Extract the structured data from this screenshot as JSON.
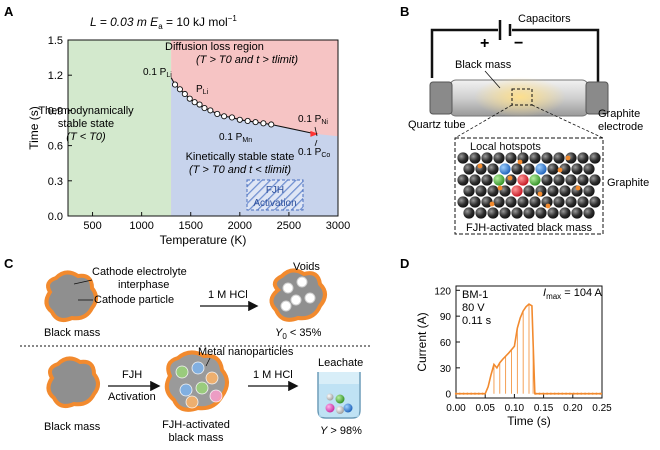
{
  "panels": {
    "a": {
      "label": "A",
      "header_l": "L = 0.03 m",
      "header_ea": "E",
      "header_ea_sub": "a",
      "header_ea_val": " = 10 kJ mol",
      "header_ea_sup": "−1",
      "region_diffusion_title": "Diffusion loss region",
      "region_diffusion_cond": "(T > T0  and  t > tlimit)",
      "region_thermo_title1": "Thermodynamically",
      "region_thermo_title2": "stable state",
      "region_thermo_cond": "(T < T0)",
      "region_kinetic_title": "Kinetically stable state",
      "region_kinetic_cond": "(T > T0  and  t < tlimit)",
      "fjh_box_line1": "FJH",
      "fjh_box_line2": "Activation",
      "annot_pli_1": "0.1 P",
      "annot_pli_1_sub": "Li",
      "annot_pli_2": "P",
      "annot_pli_2_sub": "Li",
      "annot_pmn": "0.1 P",
      "annot_pmn_sub": "Mn",
      "annot_pni": "0.1 P",
      "annot_pni_sub": "Ni",
      "annot_pco": "0.1 P",
      "annot_pco_sub": "Co",
      "colors": {
        "green": "#d3e9cd",
        "red": "#f6c4c4",
        "blue": "#c7d3ec",
        "arrow": "#ff3333"
      }
    },
    "b": {
      "label": "B",
      "capacitors": "Capacitors",
      "black_mass": "Black mass",
      "quartz_tube": "Quartz tube",
      "graphite_electrode_1": "Graphite",
      "graphite_electrode_2": "electrode",
      "local_hotspots": "Local hotspots",
      "graphite": "Graphite",
      "fjh_black_mass": "FJH-activated black mass",
      "plus": "+",
      "minus": "−"
    },
    "c": {
      "label": "C",
      "cei_1": "Cathode electrolyte",
      "cei_2": "interphase",
      "cathode_particle": "Cathode particle",
      "hcl_top": "1 M HCl",
      "voids": "Voids",
      "black_mass_top": "Black mass",
      "y0": "Y",
      "y0_sub": "0",
      "y0_val": " < 35%",
      "metal_np": "Metal nanoparticles",
      "fjh": "FJH",
      "activation": "Activation",
      "hcl_bottom": "1 M HCl",
      "leachate": "Leachate",
      "black_mass_bottom": "Black mass",
      "fjh_activated_1": "FJH-activated",
      "fjh_activated_2": "black mass",
      "y": "Y",
      "y_val": " > 98%"
    },
    "d": {
      "label": "D",
      "legend_1": "BM-1",
      "legend_2": "80 V",
      "legend_3": "0.11 s",
      "imax_i": "I",
      "imax_sub": "max",
      "imax_val": " = 104 A"
    }
  },
  "chart_data": [
    {
      "type": "scatter",
      "panel": "A",
      "xlabel": "Temperature (K)",
      "ylabel": "Time (s)",
      "xlim": [
        250,
        3000
      ],
      "ylim": [
        0.0,
        1.5
      ],
      "xticks": [
        500,
        1000,
        1500,
        2000,
        2500,
        3000
      ],
      "xtick_labels": [
        "500",
        "1000",
        "1500",
        "2000",
        "2500",
        "3000"
      ],
      "yticks": [
        0.0,
        0.3,
        0.6,
        0.9,
        1.2,
        1.5
      ],
      "ytick_labels": [
        "0.0",
        "0.3",
        "0.6",
        "0.9",
        "1.2",
        "1.5"
      ],
      "T0": 1300,
      "series": [
        {
          "name": "t_limit",
          "x": [
            1340,
            1390,
            1440,
            1490,
            1540,
            1590,
            1640,
            1700,
            1770,
            1840,
            1920,
            2000,
            2080,
            2160,
            2240,
            2320
          ],
          "y": [
            1.12,
            1.08,
            1.04,
            1.0,
            0.97,
            0.95,
            0.92,
            0.9,
            0.87,
            0.85,
            0.84,
            0.82,
            0.81,
            0.8,
            0.79,
            0.78
          ]
        }
      ],
      "line_to": {
        "x": 2770,
        "y": 0.7
      }
    },
    {
      "type": "line",
      "panel": "D",
      "xlabel": "Time (s)",
      "ylabel": "Current (A)",
      "xlim": [
        0.0,
        0.25
      ],
      "ylim": [
        -5,
        125
      ],
      "xticks": [
        0.0,
        0.05,
        0.1,
        0.15,
        0.2,
        0.25
      ],
      "xtick_labels": [
        "0.00",
        "0.05",
        "0.10",
        "0.15",
        "0.20",
        "0.25"
      ],
      "yticks": [
        0,
        30,
        60,
        90,
        120
      ],
      "ytick_labels": [
        "0",
        "30",
        "60",
        "90",
        "120"
      ],
      "series": [
        {
          "name": "BM-1 current",
          "x": [
            0.0,
            0.05,
            0.055,
            0.06,
            0.065,
            0.07,
            0.075,
            0.08,
            0.09,
            0.1,
            0.105,
            0.11,
            0.115,
            0.12,
            0.125,
            0.13,
            0.132,
            0.135,
            0.14,
            0.2,
            0.25
          ],
          "y": [
            0,
            0,
            8,
            22,
            34,
            30,
            36,
            40,
            47,
            55,
            76,
            88,
            96,
            101,
            104,
            102,
            60,
            0,
            0,
            0,
            0
          ]
        }
      ],
      "spike_x": [
        0.065,
        0.075,
        0.085,
        0.095,
        0.105,
        0.115,
        0.125,
        0.132
      ]
    }
  ]
}
